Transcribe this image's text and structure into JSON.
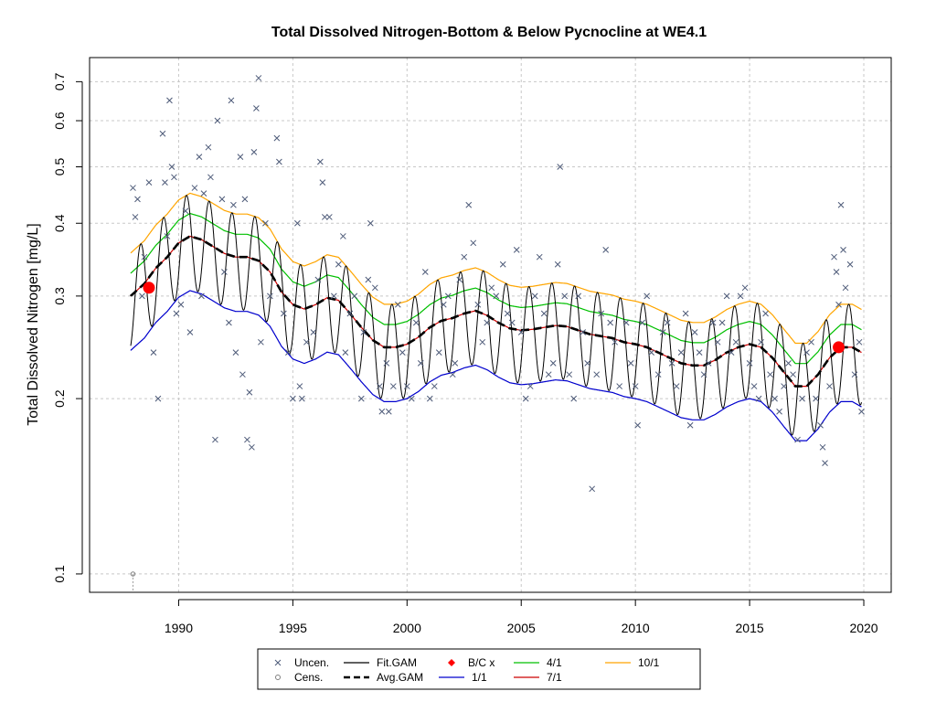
{
  "chart_data": {
    "type": "line",
    "title": "Total Dissolved Nitrogen-Bottom & Below Pycnocline at WE4.1",
    "xlabel": "",
    "ylabel": "Total Dissolved Nitrogen [mg/L]",
    "xlim": [
      1986.1,
      2021.2
    ],
    "ylim": [
      0.093,
      0.77
    ],
    "y_scale": "log",
    "grid": true,
    "legend_position": "bottom",
    "x_ticks": [
      "1990",
      "1995",
      "2000",
      "2005",
      "2010",
      "2015",
      "2020"
    ],
    "y_ticks": [
      "0.1",
      "0.2",
      "0.3",
      "0.4",
      "0.5",
      "0.6",
      "0.7"
    ],
    "legend": [
      {
        "label": "Uncen.",
        "style": "x-marker",
        "color": "#4d5a78"
      },
      {
        "label": "Cens.",
        "style": "circle-marker",
        "color": "#7f7f7f"
      },
      {
        "label": "Fit.GAM",
        "style": "line",
        "color": "#000000"
      },
      {
        "label": "Avg.GAM",
        "style": "dashed-line",
        "color": "#000000"
      },
      {
        "label": "B/C x",
        "style": "diamond-marker",
        "color": "#ff0000"
      },
      {
        "label": "1/1",
        "style": "line",
        "color": "#0000cd"
      },
      {
        "label": "4/1",
        "style": "line",
        "color": "#00c000"
      },
      {
        "label": "7/1",
        "style": "line",
        "color": "#cc0000"
      },
      {
        "label": "10/1",
        "style": "line",
        "color": "#ffa500"
      }
    ],
    "colors": {
      "uncensored": "#4d5a78",
      "censored": "#7f7f7f",
      "fit_gam": "#000000",
      "avg_gam": "#000000",
      "baseline_current": "#ff0000",
      "d_1_1": "#0000cd",
      "d_4_1": "#00c000",
      "d_7_1": "#cc0000",
      "d_10_1": "#ffa500"
    },
    "avg_gam": {
      "x": [
        1987.9,
        1988.5,
        1989.0,
        1989.5,
        1990.0,
        1990.5,
        1991.0,
        1991.5,
        1992.0,
        1992.5,
        1993.0,
        1993.5,
        1994.0,
        1994.5,
        1995.0,
        1995.5,
        1996.0,
        1996.5,
        1997.0,
        1997.5,
        1998.0,
        1998.5,
        1999.0,
        1999.5,
        2000.0,
        2000.5,
        2001.0,
        2001.5,
        2002.0,
        2002.5,
        2003.0,
        2003.5,
        2004.0,
        2004.5,
        2005.0,
        2005.5,
        2006.0,
        2006.5,
        2007.0,
        2007.5,
        2008.0,
        2008.5,
        2009.0,
        2009.5,
        2010.0,
        2010.5,
        2011.0,
        2011.5,
        2012.0,
        2012.5,
        2013.0,
        2013.5,
        2014.0,
        2014.5,
        2015.0,
        2015.5,
        2016.0,
        2016.5,
        2017.0,
        2017.5,
        2018.0,
        2018.5,
        2019.0,
        2019.5,
        2019.9
      ],
      "y": [
        0.3,
        0.315,
        0.335,
        0.35,
        0.37,
        0.38,
        0.375,
        0.365,
        0.355,
        0.35,
        0.35,
        0.345,
        0.33,
        0.305,
        0.29,
        0.285,
        0.29,
        0.298,
        0.295,
        0.28,
        0.265,
        0.252,
        0.245,
        0.245,
        0.248,
        0.255,
        0.265,
        0.272,
        0.275,
        0.28,
        0.283,
        0.278,
        0.27,
        0.264,
        0.262,
        0.263,
        0.265,
        0.267,
        0.266,
        0.262,
        0.258,
        0.256,
        0.254,
        0.25,
        0.248,
        0.245,
        0.24,
        0.235,
        0.23,
        0.228,
        0.228,
        0.233,
        0.24,
        0.245,
        0.248,
        0.245,
        0.235,
        0.222,
        0.21,
        0.21,
        0.22,
        0.235,
        0.245,
        0.245,
        0.24
      ]
    },
    "fit_gam_amplitude": 0.19,
    "doy_curves": [
      {
        "name": "1/1",
        "offset": -0.215
      },
      {
        "name": "4/1",
        "offset": 0.09
      },
      {
        "name": "7/1",
        "offset": 0.0
      },
      {
        "name": "10/1",
        "offset": 0.17
      }
    ],
    "baseline_current": [
      {
        "x": 1988.7,
        "y": 0.31
      },
      {
        "x": 2018.9,
        "y": 0.245
      }
    ],
    "censored": [
      {
        "x": 1988.0,
        "y": 0.1
      }
    ],
    "uncensored": [
      {
        "x": 1988.0,
        "y": 0.46
      },
      {
        "x": 1988.1,
        "y": 0.41
      },
      {
        "x": 1988.2,
        "y": 0.44
      },
      {
        "x": 1988.4,
        "y": 0.3
      },
      {
        "x": 1988.5,
        "y": 0.35
      },
      {
        "x": 1988.7,
        "y": 0.47
      },
      {
        "x": 1988.9,
        "y": 0.24
      },
      {
        "x": 1989.1,
        "y": 0.2
      },
      {
        "x": 1989.3,
        "y": 0.57
      },
      {
        "x": 1989.4,
        "y": 0.47
      },
      {
        "x": 1989.5,
        "y": 0.38
      },
      {
        "x": 1989.6,
        "y": 0.65
      },
      {
        "x": 1989.7,
        "y": 0.5
      },
      {
        "x": 1989.8,
        "y": 0.48
      },
      {
        "x": 1989.9,
        "y": 0.28
      },
      {
        "x": 1990.1,
        "y": 0.29
      },
      {
        "x": 1990.3,
        "y": 0.42
      },
      {
        "x": 1990.5,
        "y": 0.26
      },
      {
        "x": 1990.7,
        "y": 0.46
      },
      {
        "x": 1990.9,
        "y": 0.52
      },
      {
        "x": 1991.0,
        "y": 0.3
      },
      {
        "x": 1991.1,
        "y": 0.45
      },
      {
        "x": 1991.3,
        "y": 0.54
      },
      {
        "x": 1991.4,
        "y": 0.48
      },
      {
        "x": 1991.6,
        "y": 0.17
      },
      {
        "x": 1991.7,
        "y": 0.6
      },
      {
        "x": 1991.9,
        "y": 0.44
      },
      {
        "x": 1992.0,
        "y": 0.33
      },
      {
        "x": 1992.2,
        "y": 0.27
      },
      {
        "x": 1992.3,
        "y": 0.65
      },
      {
        "x": 1992.4,
        "y": 0.43
      },
      {
        "x": 1992.5,
        "y": 0.24
      },
      {
        "x": 1992.7,
        "y": 0.52
      },
      {
        "x": 1992.8,
        "y": 0.22
      },
      {
        "x": 1992.9,
        "y": 0.44
      },
      {
        "x": 1993.0,
        "y": 0.17
      },
      {
        "x": 1993.1,
        "y": 0.205
      },
      {
        "x": 1993.2,
        "y": 0.165
      },
      {
        "x": 1993.3,
        "y": 0.53
      },
      {
        "x": 1993.4,
        "y": 0.63
      },
      {
        "x": 1993.5,
        "y": 0.71
      },
      {
        "x": 1993.6,
        "y": 0.25
      },
      {
        "x": 1993.8,
        "y": 0.4
      },
      {
        "x": 1994.0,
        "y": 0.3
      },
      {
        "x": 1994.3,
        "y": 0.56
      },
      {
        "x": 1994.4,
        "y": 0.51
      },
      {
        "x": 1994.6,
        "y": 0.28
      },
      {
        "x": 1994.8,
        "y": 0.24
      },
      {
        "x": 1995.0,
        "y": 0.2
      },
      {
        "x": 1995.2,
        "y": 0.4
      },
      {
        "x": 1995.3,
        "y": 0.21
      },
      {
        "x": 1995.4,
        "y": 0.2
      },
      {
        "x": 1995.6,
        "y": 0.25
      },
      {
        "x": 1995.9,
        "y": 0.26
      },
      {
        "x": 1996.1,
        "y": 0.32
      },
      {
        "x": 1996.2,
        "y": 0.51
      },
      {
        "x": 1996.3,
        "y": 0.47
      },
      {
        "x": 1996.4,
        "y": 0.41
      },
      {
        "x": 1996.6,
        "y": 0.41
      },
      {
        "x": 1996.8,
        "y": 0.3
      },
      {
        "x": 1997.0,
        "y": 0.34
      },
      {
        "x": 1997.2,
        "y": 0.38
      },
      {
        "x": 1997.3,
        "y": 0.24
      },
      {
        "x": 1997.5,
        "y": 0.28
      },
      {
        "x": 1997.7,
        "y": 0.3
      },
      {
        "x": 1998.0,
        "y": 0.2
      },
      {
        "x": 1998.1,
        "y": 0.26
      },
      {
        "x": 1998.3,
        "y": 0.32
      },
      {
        "x": 1998.4,
        "y": 0.4
      },
      {
        "x": 1998.6,
        "y": 0.31
      },
      {
        "x": 1998.8,
        "y": 0.21
      },
      {
        "x": 1998.9,
        "y": 0.19
      },
      {
        "x": 1999.1,
        "y": 0.23
      },
      {
        "x": 1999.2,
        "y": 0.19
      },
      {
        "x": 1999.4,
        "y": 0.21
      },
      {
        "x": 1999.6,
        "y": 0.29
      },
      {
        "x": 1999.8,
        "y": 0.24
      },
      {
        "x": 2000.0,
        "y": 0.21
      },
      {
        "x": 2000.2,
        "y": 0.2
      },
      {
        "x": 2000.4,
        "y": 0.27
      },
      {
        "x": 2000.6,
        "y": 0.23
      },
      {
        "x": 2000.8,
        "y": 0.33
      },
      {
        "x": 2001.0,
        "y": 0.2
      },
      {
        "x": 2001.2,
        "y": 0.21
      },
      {
        "x": 2001.4,
        "y": 0.24
      },
      {
        "x": 2001.6,
        "y": 0.29
      },
      {
        "x": 2001.8,
        "y": 0.3
      },
      {
        "x": 2002.0,
        "y": 0.22
      },
      {
        "x": 2002.1,
        "y": 0.23
      },
      {
        "x": 2002.3,
        "y": 0.32
      },
      {
        "x": 2002.5,
        "y": 0.35
      },
      {
        "x": 2002.7,
        "y": 0.43
      },
      {
        "x": 2002.9,
        "y": 0.37
      },
      {
        "x": 2003.1,
        "y": 0.29
      },
      {
        "x": 2003.3,
        "y": 0.25
      },
      {
        "x": 2003.5,
        "y": 0.27
      },
      {
        "x": 2003.7,
        "y": 0.31
      },
      {
        "x": 2003.9,
        "y": 0.3
      },
      {
        "x": 2004.2,
        "y": 0.34
      },
      {
        "x": 2004.4,
        "y": 0.28
      },
      {
        "x": 2004.6,
        "y": 0.27
      },
      {
        "x": 2004.8,
        "y": 0.36
      },
      {
        "x": 2005.0,
        "y": 0.26
      },
      {
        "x": 2005.2,
        "y": 0.2
      },
      {
        "x": 2005.4,
        "y": 0.21
      },
      {
        "x": 2005.6,
        "y": 0.3
      },
      {
        "x": 2005.8,
        "y": 0.35
      },
      {
        "x": 2006.0,
        "y": 0.28
      },
      {
        "x": 2006.2,
        "y": 0.22
      },
      {
        "x": 2006.4,
        "y": 0.23
      },
      {
        "x": 2006.6,
        "y": 0.34
      },
      {
        "x": 2006.7,
        "y": 0.5
      },
      {
        "x": 2006.9,
        "y": 0.3
      },
      {
        "x": 2007.1,
        "y": 0.22
      },
      {
        "x": 2007.3,
        "y": 0.2
      },
      {
        "x": 2007.5,
        "y": 0.3
      },
      {
        "x": 2007.7,
        "y": 0.26
      },
      {
        "x": 2007.9,
        "y": 0.23
      },
      {
        "x": 2008.1,
        "y": 0.14
      },
      {
        "x": 2008.3,
        "y": 0.22
      },
      {
        "x": 2008.5,
        "y": 0.28
      },
      {
        "x": 2008.7,
        "y": 0.36
      },
      {
        "x": 2008.9,
        "y": 0.27
      },
      {
        "x": 2009.1,
        "y": 0.25
      },
      {
        "x": 2009.3,
        "y": 0.21
      },
      {
        "x": 2009.6,
        "y": 0.27
      },
      {
        "x": 2009.8,
        "y": 0.23
      },
      {
        "x": 2010.0,
        "y": 0.21
      },
      {
        "x": 2010.1,
        "y": 0.18
      },
      {
        "x": 2010.3,
        "y": 0.27
      },
      {
        "x": 2010.5,
        "y": 0.3
      },
      {
        "x": 2010.7,
        "y": 0.24
      },
      {
        "x": 2011.0,
        "y": 0.22
      },
      {
        "x": 2011.2,
        "y": 0.26
      },
      {
        "x": 2011.4,
        "y": 0.27
      },
      {
        "x": 2011.6,
        "y": 0.23
      },
      {
        "x": 2011.8,
        "y": 0.21
      },
      {
        "x": 2012.0,
        "y": 0.24
      },
      {
        "x": 2012.2,
        "y": 0.28
      },
      {
        "x": 2012.4,
        "y": 0.18
      },
      {
        "x": 2012.6,
        "y": 0.26
      },
      {
        "x": 2012.8,
        "y": 0.24
      },
      {
        "x": 2013.0,
        "y": 0.22
      },
      {
        "x": 2013.2,
        "y": 0.23
      },
      {
        "x": 2013.4,
        "y": 0.27
      },
      {
        "x": 2013.6,
        "y": 0.25
      },
      {
        "x": 2013.8,
        "y": 0.27
      },
      {
        "x": 2014.0,
        "y": 0.3
      },
      {
        "x": 2014.2,
        "y": 0.24
      },
      {
        "x": 2014.4,
        "y": 0.25
      },
      {
        "x": 2014.6,
        "y": 0.3
      },
      {
        "x": 2014.8,
        "y": 0.31
      },
      {
        "x": 2015.0,
        "y": 0.23
      },
      {
        "x": 2015.2,
        "y": 0.21
      },
      {
        "x": 2015.4,
        "y": 0.2
      },
      {
        "x": 2015.5,
        "y": 0.25
      },
      {
        "x": 2015.7,
        "y": 0.28
      },
      {
        "x": 2015.9,
        "y": 0.22
      },
      {
        "x": 2016.1,
        "y": 0.2
      },
      {
        "x": 2016.3,
        "y": 0.19
      },
      {
        "x": 2016.5,
        "y": 0.21
      },
      {
        "x": 2016.7,
        "y": 0.23
      },
      {
        "x": 2016.9,
        "y": 0.22
      },
      {
        "x": 2017.1,
        "y": 0.17
      },
      {
        "x": 2017.3,
        "y": 0.2
      },
      {
        "x": 2017.5,
        "y": 0.24
      },
      {
        "x": 2017.7,
        "y": 0.25
      },
      {
        "x": 2017.9,
        "y": 0.2
      },
      {
        "x": 2018.1,
        "y": 0.18
      },
      {
        "x": 2018.2,
        "y": 0.165
      },
      {
        "x": 2018.3,
        "y": 0.155
      },
      {
        "x": 2018.5,
        "y": 0.21
      },
      {
        "x": 2018.7,
        "y": 0.35
      },
      {
        "x": 2018.8,
        "y": 0.33
      },
      {
        "x": 2018.9,
        "y": 0.29
      },
      {
        "x": 2019.0,
        "y": 0.43
      },
      {
        "x": 2019.1,
        "y": 0.36
      },
      {
        "x": 2019.2,
        "y": 0.31
      },
      {
        "x": 2019.4,
        "y": 0.34
      },
      {
        "x": 2019.6,
        "y": 0.22
      },
      {
        "x": 2019.8,
        "y": 0.25
      },
      {
        "x": 2019.9,
        "y": 0.19
      }
    ]
  }
}
